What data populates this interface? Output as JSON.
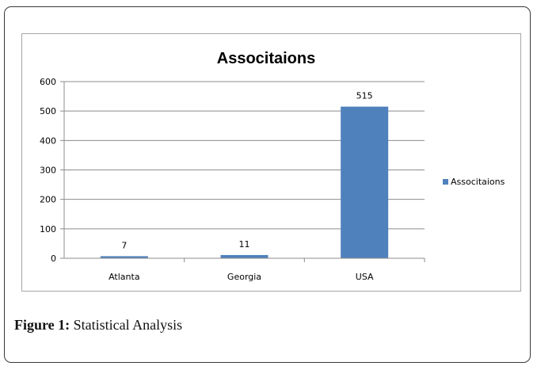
{
  "chart_data": {
    "type": "bar",
    "title": "Associtaions",
    "categories": [
      "Atlanta",
      "Georgia",
      "USA"
    ],
    "series": [
      {
        "name": "Associtaions",
        "values": [
          7,
          11,
          515
        ]
      }
    ],
    "data_labels": [
      "7",
      "11",
      "515"
    ],
    "y_ticks": [
      "0",
      "100",
      "200",
      "300",
      "400",
      "500",
      "600"
    ],
    "ylim": [
      0,
      600
    ],
    "grid": true,
    "legend_position": "right",
    "bar_color": "#4f81bd"
  },
  "figure": {
    "caption_label": "Figure 1:",
    "caption_text": " Statistical Analysis"
  }
}
